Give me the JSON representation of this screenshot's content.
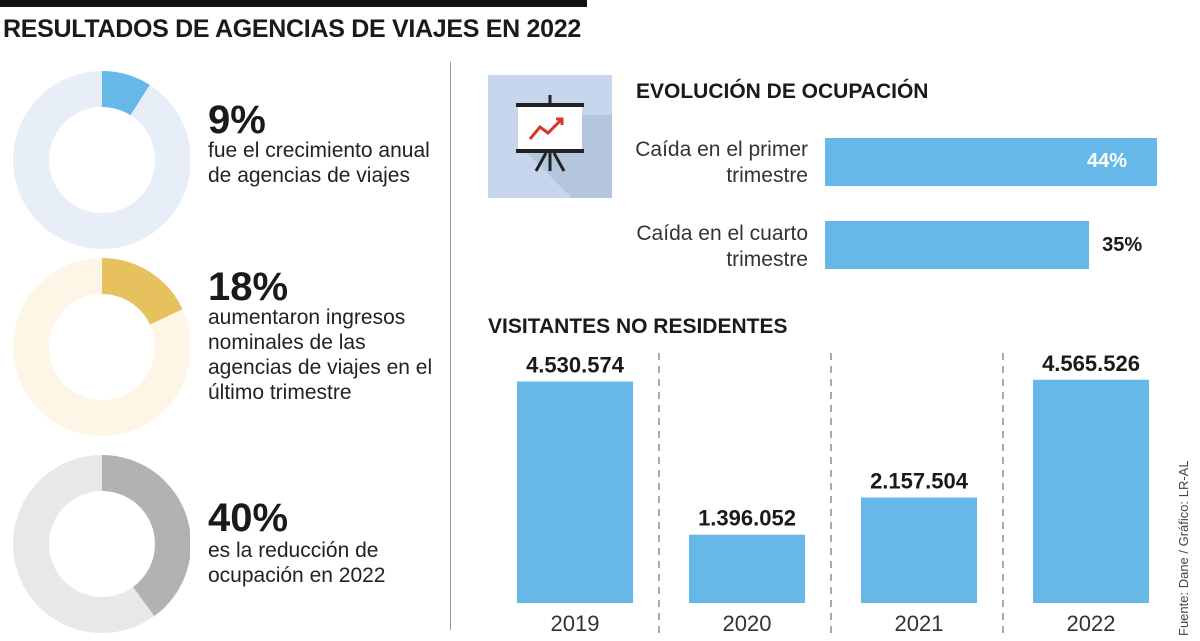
{
  "title": "RESULTADOS DE AGENCIAS DE VIAJES EN 2022",
  "colors": {
    "blue": "#65b8e8",
    "blue_light": "#e8eef8",
    "gold": "#e6c15d",
    "gold_light": "#fdf6e6",
    "gray": "#b2b1b3",
    "gray_light": "#e8e8e8"
  },
  "stats": [
    {
      "value": "9%",
      "fraction": 0.09,
      "description": "fue el crecimiento anual de agencias de viajes"
    },
    {
      "value": "18%",
      "fraction": 0.18,
      "description": "aumentaron ingresos nominales de las agencias de viajes en el último trimestre"
    },
    {
      "value": "40%",
      "fraction": 0.4,
      "description": "es la reducción de ocupación en 2022"
    }
  ],
  "occupancy": {
    "title": "EVOLUCIÓN DE OCUPACIÓN",
    "items": [
      {
        "label": "Caída en el primer trimestre",
        "value": 44,
        "value_label": "44%"
      },
      {
        "label": "Caída en el cuarto trimestre",
        "value": 35,
        "value_label": "35%"
      }
    ]
  },
  "chart_data": {
    "type": "bar",
    "title": "VISITANTES NO RESIDENTES",
    "categories": [
      "2019",
      "2020",
      "2021",
      "2022"
    ],
    "values": [
      4530574,
      1396052,
      2157504,
      4565526
    ],
    "value_labels": [
      "4.530.574",
      "1.396.052",
      "2.157.504",
      "4.565.526"
    ],
    "ylim": [
      0,
      4800000
    ],
    "grid": false
  },
  "source": "Fuente: Dane / Gráfico: LR-AL"
}
